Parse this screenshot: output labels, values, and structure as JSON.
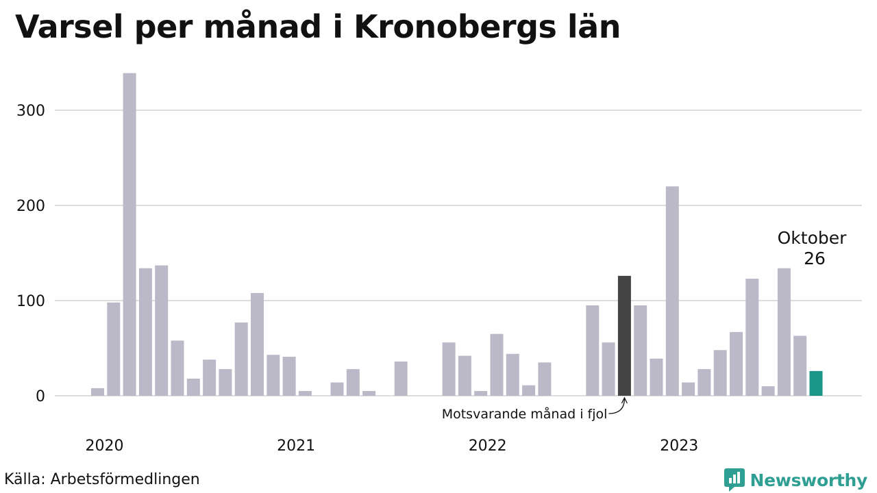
{
  "chart_data": {
    "type": "bar",
    "title": "Varsel per månad i Kronobergs län",
    "xlabel": "",
    "ylabel": "",
    "ylim": [
      0,
      345
    ],
    "yticks": [
      0,
      100,
      200,
      300
    ],
    "year_labels": [
      {
        "label": "2020",
        "index": 0
      },
      {
        "label": "2021",
        "index": 12
      },
      {
        "label": "2022",
        "index": 24
      },
      {
        "label": "2023",
        "index": 36
      }
    ],
    "categories": [
      "2020-01",
      "2020-02",
      "2020-03",
      "2020-04",
      "2020-05",
      "2020-06",
      "2020-07",
      "2020-08",
      "2020-09",
      "2020-10",
      "2020-11",
      "2020-12",
      "2021-01",
      "2021-02",
      "2021-03",
      "2021-04",
      "2021-05",
      "2021-06",
      "2021-07",
      "2021-08",
      "2021-09",
      "2021-10",
      "2021-11",
      "2021-12",
      "2022-01",
      "2022-02",
      "2022-03",
      "2022-04",
      "2022-05",
      "2022-06",
      "2022-07",
      "2022-08",
      "2022-09",
      "2022-10",
      "2022-11",
      "2022-12",
      "2023-01",
      "2023-02",
      "2023-03",
      "2023-04",
      "2023-05",
      "2023-06",
      "2023-07",
      "2023-08",
      "2023-09",
      "2023-10"
    ],
    "values": [
      8,
      98,
      339,
      134,
      137,
      58,
      18,
      38,
      28,
      77,
      108,
      43,
      41,
      5,
      0,
      14,
      28,
      5,
      0,
      36,
      0,
      0,
      56,
      42,
      5,
      65,
      44,
      11,
      35,
      0,
      0,
      95,
      56,
      126,
      95,
      39,
      220,
      14,
      28,
      48,
      67,
      123,
      10,
      134,
      63,
      26
    ],
    "highlight_previous_index": 33,
    "highlight_current_index": 45,
    "annotation_current": {
      "label": "Oktober",
      "value": "26"
    },
    "annotation_previous": "Motsvarande månad i fjol",
    "colors": {
      "default": "#bbb9c8",
      "previous": "#444444",
      "current": "#1a9688",
      "grid": "#dddddd"
    }
  },
  "source": "Källa: Arbetsförmedlingen",
  "brand": {
    "name": "Newsworthy",
    "icon": "newsworthy-logo-icon"
  }
}
